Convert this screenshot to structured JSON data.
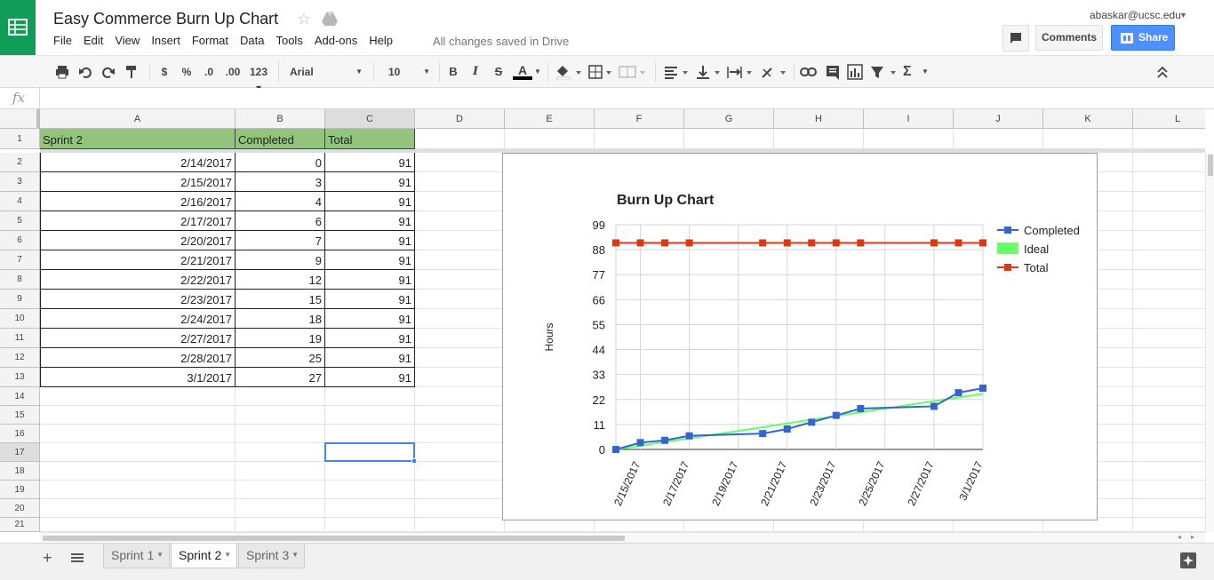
{
  "header": {
    "title": "Easy Commerce Burn Up Chart",
    "menu": [
      "File",
      "Edit",
      "View",
      "Insert",
      "Format",
      "Data",
      "Tools",
      "Add-ons",
      "Help"
    ],
    "saved_status": "All changes saved in Drive",
    "user_email": "abaskar@ucsc.edu",
    "comments_label": "Comments",
    "share_label": "Share"
  },
  "toolbar": {
    "currency": "$",
    "percent": "%",
    "dec_decrease": ".0",
    "dec_increase": ".00",
    "more_formats": "123",
    "font": "Arial",
    "font_size": "10",
    "bold": "B",
    "italic": "I",
    "strike": "S",
    "text_color": "A",
    "functions": "Σ"
  },
  "columns": [
    "A",
    "B",
    "C",
    "D",
    "E",
    "F",
    "G",
    "H",
    "I",
    "J",
    "K",
    "L"
  ],
  "rows": [
    "1",
    "2",
    "3",
    "4",
    "5",
    "6",
    "7",
    "8",
    "9",
    "10",
    "11",
    "12",
    "13",
    "14",
    "15",
    "16",
    "17",
    "18",
    "19",
    "20",
    "21"
  ],
  "table": {
    "headers": [
      "Sprint 2",
      "Completed",
      "Total"
    ],
    "header_color": "#93c47d",
    "rows": [
      [
        "2/14/2017",
        "0",
        "91"
      ],
      [
        "2/15/2017",
        "3",
        "91"
      ],
      [
        "2/16/2017",
        "4",
        "91"
      ],
      [
        "2/17/2017",
        "6",
        "91"
      ],
      [
        "2/20/2017",
        "7",
        "91"
      ],
      [
        "2/21/2017",
        "9",
        "91"
      ],
      [
        "2/22/2017",
        "12",
        "91"
      ],
      [
        "2/23/2017",
        "15",
        "91"
      ],
      [
        "2/24/2017",
        "18",
        "91"
      ],
      [
        "2/27/2017",
        "19",
        "91"
      ],
      [
        "2/28/2017",
        "25",
        "91"
      ],
      [
        "3/1/2017",
        "27",
        "91"
      ]
    ]
  },
  "chart_data": {
    "type": "line",
    "title": "Burn Up Chart",
    "ylabel": "Hours",
    "xlabel": "",
    "ylim": [
      0,
      99
    ],
    "yticks": [
      "0",
      "11",
      "22",
      "33",
      "44",
      "55",
      "66",
      "77",
      "88",
      "99"
    ],
    "x": [
      "2/14/2017",
      "2/15/2017",
      "2/16/2017",
      "2/17/2017",
      "2/20/2017",
      "2/21/2017",
      "2/22/2017",
      "2/23/2017",
      "2/24/2017",
      "2/27/2017",
      "2/28/2017",
      "3/1/2017"
    ],
    "xtick_labels": [
      "2/15/2017",
      "2/17/2017",
      "2/19/2017",
      "2/21/2017",
      "2/23/2017",
      "2/25/2017",
      "2/27/2017",
      "3/1/2017"
    ],
    "xlim": [
      "2/14/2017",
      "3/1/2017"
    ],
    "legend_position": "right",
    "grid": true,
    "series": [
      {
        "name": "Completed",
        "color": "#3366cc",
        "values": [
          0,
          3,
          4,
          6,
          7,
          9,
          12,
          15,
          18,
          19,
          25,
          27
        ]
      },
      {
        "name": "Ideal",
        "color": "#66ff66",
        "values": [
          0,
          1.6,
          3.3,
          4.9,
          9.8,
          11.5,
          13.1,
          14.7,
          16.4,
          21.3,
          22.9,
          24.5
        ]
      },
      {
        "name": "Total",
        "color": "#dc3912",
        "values": [
          91,
          91,
          91,
          91,
          91,
          91,
          91,
          91,
          91,
          91,
          91,
          91
        ]
      }
    ]
  },
  "sheets": [
    {
      "name": "Sprint 1",
      "active": false
    },
    {
      "name": "Sprint 2",
      "active": true
    },
    {
      "name": "Sprint 3",
      "active": false
    }
  ]
}
